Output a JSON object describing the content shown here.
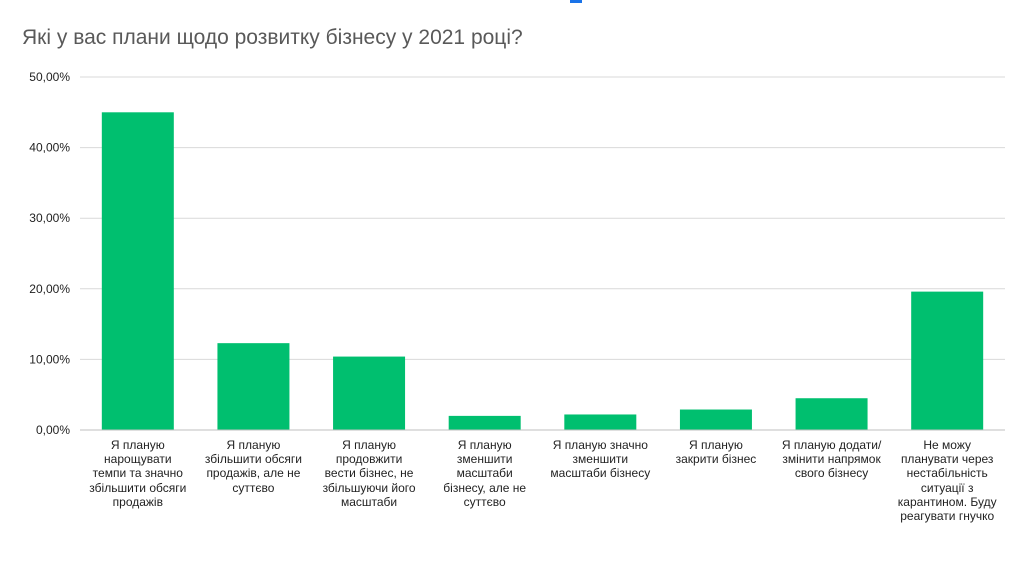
{
  "chart_data": {
    "type": "bar",
    "title": "Які у вас плани щодо розвитку бізнесу у 2021 році?",
    "categories": [
      "Я планую нарощувати темпи та значно збільшити обсяги продажів",
      "Я планую збільшити обсяги продажів, але не суттєво",
      "Я планую продовжити вести бізнес, не збільшуючи його масштаби",
      "Я планую зменшити масштаби бізнесу, але не суттєво",
      "Я планую значно зменшити масштаби бізнесу",
      "Я планую закрити бізнес",
      "Я планую додати/змінити напрямок свого бізнесу",
      "Не можу планувати через нестабільність ситуації з карантином. Буду реагувати гнучко"
    ],
    "values": [
      45.0,
      12.3,
      10.4,
      2.0,
      2.2,
      2.9,
      4.5,
      19.6
    ],
    "ylim": [
      0,
      50
    ],
    "yticks": [
      "0,00%",
      "10,00%",
      "20,00%",
      "30,00%",
      "40,00%",
      "50,00%"
    ],
    "grid": true,
    "colors": {
      "bar": "#00bf6f",
      "grid": "#d9d9d9",
      "axis": "#bfbfbf"
    }
  }
}
